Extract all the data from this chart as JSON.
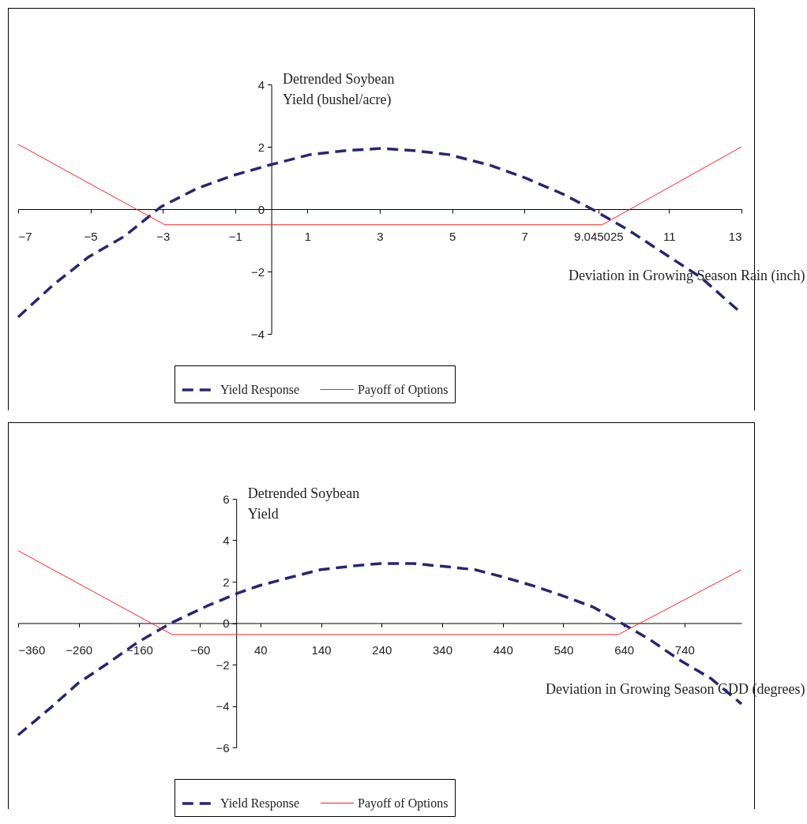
{
  "chart_data": [
    {
      "type": "line",
      "xlabel": "Deviation in Growing Season Rain (inch)",
      "ylabel": "Detrended Soybean Yield (bushel/acre)",
      "xlim": [
        -7,
        13
      ],
      "xticks": [
        -7,
        -5,
        -3,
        -1,
        1,
        3,
        5,
        7,
        {
          "value": 9.045025,
          "label": "9.045025"
        },
        11,
        13
      ],
      "ylim": [
        -4,
        4
      ],
      "yticks": [
        -4,
        -2,
        0,
        2,
        4
      ],
      "grid": false,
      "legend": "bottom",
      "series": [
        {
          "name": "Yield Response",
          "color": "#262673",
          "line_style": "dashed",
          "x": [
            -7,
            -6.05,
            -5.05,
            -4.05,
            -3.06,
            -2.06,
            -1.06,
            -0.07,
            1.07,
            2.07,
            3.06,
            3.92,
            4.91,
            6.05,
            7.05,
            8.05,
            8.9,
            9.9,
            10.9,
            11.89,
            13
          ],
          "values": [
            -3.46,
            -2.45,
            -1.53,
            -0.86,
            0.07,
            0.66,
            1.08,
            1.41,
            1.75,
            1.88,
            1.95,
            1.88,
            1.75,
            1.41,
            0.99,
            0.49,
            -0.02,
            -0.69,
            -1.45,
            -2.2,
            -3.34
          ]
        },
        {
          "name": "Payoff of Options",
          "color": "#ff2020",
          "line_style": "solid",
          "x": [
            -7,
            -2.95,
            9.15,
            13
          ],
          "values": [
            2.08,
            -0.5,
            -0.5,
            2.0
          ]
        }
      ]
    },
    {
      "type": "line",
      "xlabel": "Deviation in Growing Season GDD (degrees)",
      "ylabel": "Detrended Soybean Yield",
      "xlim": [
        -360,
        834
      ],
      "xticks": [
        -360,
        -260,
        -160,
        -60,
        40,
        140,
        240,
        340,
        440,
        540,
        640,
        740
      ],
      "ylim": [
        -6,
        6
      ],
      "yticks": [
        -6,
        -4,
        -2,
        0,
        2,
        4,
        6
      ],
      "grid": false,
      "legend": "bottom",
      "series": [
        {
          "name": "Yield Response",
          "color": "#262673",
          "line_style": "dashed",
          "x": [
            -360,
            -307,
            -261,
            -210,
            -163,
            -108,
            -48,
            3,
            37,
            88,
            139,
            190,
            239,
            292,
            338,
            394,
            438,
            487,
            538,
            589,
            636,
            683,
            733,
            784,
            834
          ],
          "values": [
            -5.4,
            -4.1,
            -2.9,
            -1.9,
            -0.93,
            0,
            0.83,
            1.45,
            1.8,
            2.2,
            2.58,
            2.75,
            2.88,
            2.88,
            2.75,
            2.58,
            2.25,
            1.83,
            1.33,
            0.78,
            0,
            -0.8,
            -1.8,
            -2.68,
            -3.9
          ]
        },
        {
          "name": "Payoff of Options",
          "color": "#ff2020",
          "line_style": "solid",
          "x": [
            -360,
            -106,
            631,
            834
          ],
          "values": [
            3.5,
            -0.55,
            -0.55,
            2.58
          ]
        }
      ]
    }
  ]
}
